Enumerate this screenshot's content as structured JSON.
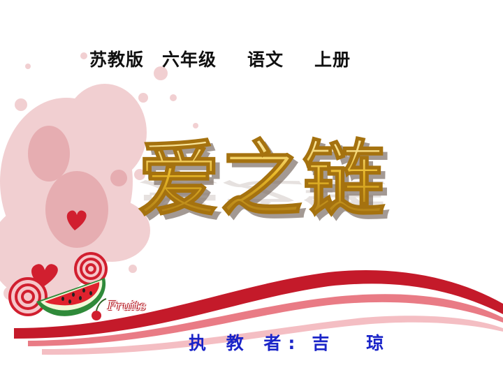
{
  "header": {
    "publisher": "苏教版",
    "grade": "六年级",
    "subject": "语文",
    "volume": "上册"
  },
  "title": {
    "text": "爱之链",
    "fill_top": "#fff6c8",
    "fill_mid": "#e9b928",
    "fill_bottom": "#9c6a10",
    "shadow": "#8a7a70"
  },
  "teacher": {
    "label": "执 教 者:",
    "name": "吉 琼"
  },
  "decor": {
    "fruits_label": "Fruits",
    "accent": "#d11f2f",
    "splash": "#e7a9ad"
  }
}
